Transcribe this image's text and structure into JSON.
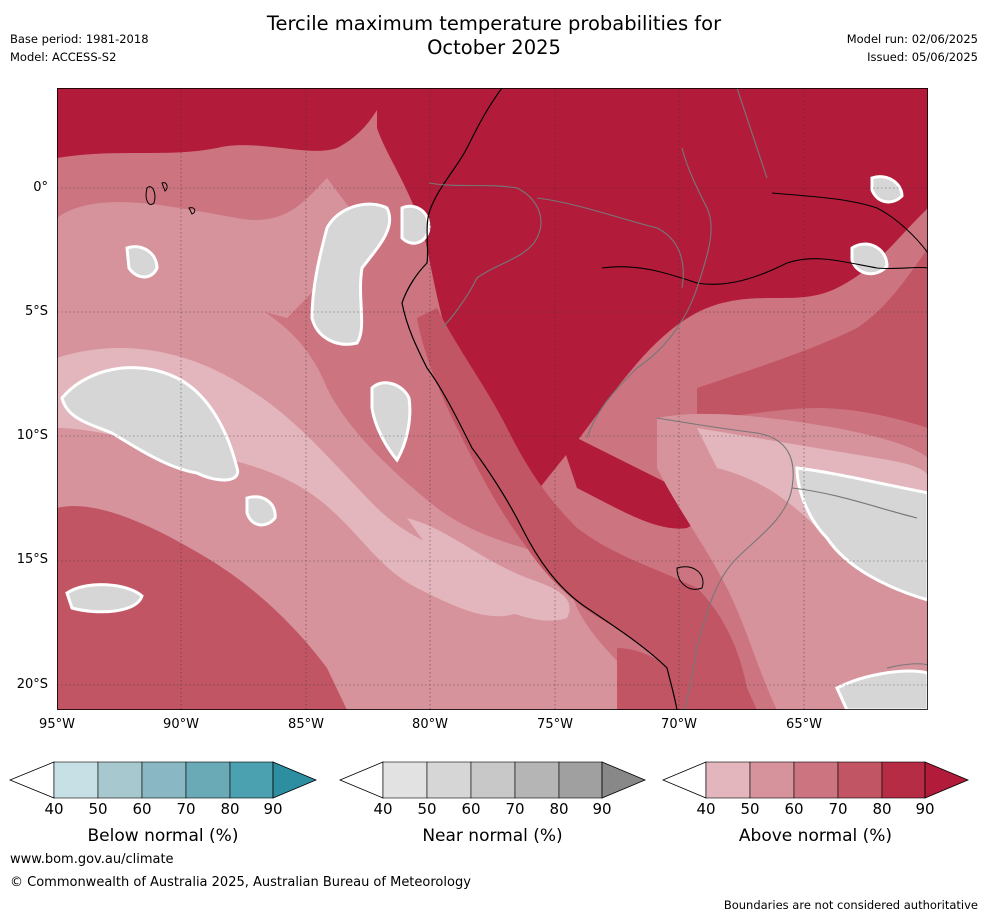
{
  "header": {
    "title_line1": "Tercile maximum temperature probabilities for",
    "title_line2": "October 2025",
    "base_period": "Base period: 1981-2018",
    "model": "Model: ACCESS-S2",
    "model_run": "Model run: 02/06/2025",
    "issued": "Issued: 05/06/2025"
  },
  "map": {
    "lat_labels": [
      "0°",
      "5°S",
      "10°S",
      "15°S",
      "20°S"
    ],
    "lon_labels": [
      "95°W",
      "90°W",
      "85°W",
      "80°W",
      "75°W",
      "70°W",
      "65°W"
    ],
    "extent": {
      "lon": [
        -95,
        -60
      ],
      "lat": [
        -21,
        4
      ]
    },
    "colors": {
      "above_40": "#e3b6bd",
      "above_50": "#d6939c",
      "above_60": "#cc7480",
      "above_70": "#c15564",
      "above_80": "#b21c3a",
      "near_40": "#e2e2e2",
      "near_50": "#d6d6d6"
    }
  },
  "colorbars": [
    {
      "label": "Below normal (%)",
      "ticks": [
        "40",
        "50",
        "60",
        "70",
        "80",
        "90"
      ],
      "colors": [
        "#c7e0e5",
        "#a8c8cf",
        "#89b7c3",
        "#6aaab6",
        "#4ca1b0",
        "#2d8ea1"
      ]
    },
    {
      "label": "Near normal (%)",
      "ticks": [
        "40",
        "50",
        "60",
        "70",
        "80",
        "90"
      ],
      "colors": [
        "#e2e2e2",
        "#d6d6d6",
        "#c8c8c8",
        "#b5b5b5",
        "#a0a0a0",
        "#888888"
      ]
    },
    {
      "label": "Above normal (%)",
      "ticks": [
        "40",
        "50",
        "60",
        "70",
        "80",
        "90"
      ],
      "colors": [
        "#e3b6bd",
        "#d6939c",
        "#cc7480",
        "#c15564",
        "#b52c44",
        "#b21c3a"
      ]
    }
  ],
  "footer": {
    "website": "www.bom.gov.au/climate",
    "copyright": "© Commonwealth of Australia 2025, Australian Bureau of Meteorology",
    "disclaimer": "Boundaries are not considered authoritative"
  }
}
